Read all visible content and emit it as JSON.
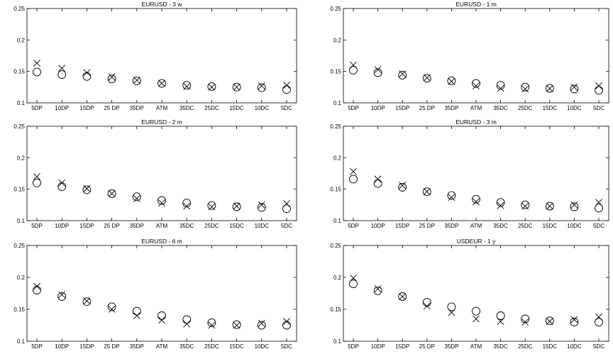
{
  "chart_data": [
    {
      "type": "scatter",
      "title": "EURUSD - 3 w",
      "categories": [
        "5DP",
        "10DP",
        "15DP",
        "25 DP",
        "35DP",
        "ATM",
        "35DC",
        "25DC",
        "15DC",
        "10DC",
        "5DC"
      ],
      "ylim": [
        0.1,
        0.25
      ],
      "yticks": [
        "0.1",
        "0.15",
        "0.2",
        "0.25"
      ],
      "series": [
        {
          "marker": "circle",
          "values": [
            0.149,
            0.145,
            0.142,
            0.138,
            0.135,
            0.131,
            0.128,
            0.126,
            0.125,
            0.124,
            0.121
          ]
        },
        {
          "marker": "cross",
          "values": [
            0.163,
            0.155,
            0.148,
            0.141,
            0.136,
            0.131,
            0.126,
            0.125,
            0.125,
            0.127,
            0.128
          ]
        }
      ]
    },
    {
      "type": "scatter",
      "title": "EURUSD - 1 m",
      "categories": [
        "5DP",
        "10DP",
        "15DP",
        "25 DP",
        "35DP",
        "ATM",
        "35DC",
        "25DC",
        "15DC",
        "10DC",
        "5DC"
      ],
      "ylim": [
        0.1,
        0.25
      ],
      "yticks": [
        "0.1",
        "0.15",
        "0.2",
        "0.25"
      ],
      "series": [
        {
          "marker": "circle",
          "values": [
            0.152,
            0.148,
            0.144,
            0.139,
            0.135,
            0.131,
            0.128,
            0.125,
            0.123,
            0.122,
            0.12
          ]
        },
        {
          "marker": "cross",
          "values": [
            0.16,
            0.153,
            0.146,
            0.14,
            0.134,
            0.127,
            0.123,
            0.122,
            0.123,
            0.125,
            0.127
          ]
        }
      ]
    },
    {
      "type": "scatter",
      "title": "EURUSD - 2 m",
      "categories": [
        "5DP",
        "10DP",
        "15DP",
        "25 DP",
        "35DP",
        "ATM",
        "35DC",
        "25DC",
        "15DC",
        "10DC",
        "5DC"
      ],
      "ylim": [
        0.1,
        0.25
      ],
      "yticks": [
        "0.1",
        "0.15",
        "0.2",
        "0.25"
      ],
      "series": [
        {
          "marker": "circle",
          "values": [
            0.16,
            0.154,
            0.149,
            0.143,
            0.138,
            0.132,
            0.128,
            0.124,
            0.122,
            0.121,
            0.119
          ]
        },
        {
          "marker": "cross",
          "values": [
            0.17,
            0.16,
            0.151,
            0.143,
            0.135,
            0.128,
            0.123,
            0.122,
            0.123,
            0.125,
            0.127
          ]
        }
      ]
    },
    {
      "type": "scatter",
      "title": "EURUSD - 3 m",
      "categories": [
        "5DP",
        "10DP",
        "15DP",
        "25 DP",
        "35DP",
        "ATM",
        "35DC",
        "25DC",
        "15DC",
        "10DC",
        "5DC"
      ],
      "ylim": [
        0.1,
        0.25
      ],
      "yticks": [
        "0.1",
        "0.15",
        "0.2",
        "0.25"
      ],
      "series": [
        {
          "marker": "circle",
          "values": [
            0.166,
            0.159,
            0.153,
            0.146,
            0.14,
            0.134,
            0.129,
            0.125,
            0.123,
            0.122,
            0.12
          ]
        },
        {
          "marker": "cross",
          "values": [
            0.178,
            0.166,
            0.156,
            0.146,
            0.137,
            0.13,
            0.124,
            0.123,
            0.123,
            0.125,
            0.129
          ]
        }
      ]
    },
    {
      "type": "scatter",
      "title": "EURUSD - 6 m",
      "categories": [
        "5DP",
        "10DP",
        "15DP",
        "25 DP",
        "35DP",
        "ATM",
        "35DC",
        "25DC",
        "15DC",
        "10DC",
        "5DC"
      ],
      "ylim": [
        0.1,
        0.25
      ],
      "yticks": [
        "0.1",
        "0.15",
        "0.2",
        "0.25"
      ],
      "series": [
        {
          "marker": "circle",
          "values": [
            0.18,
            0.17,
            0.162,
            0.154,
            0.147,
            0.14,
            0.134,
            0.129,
            0.126,
            0.125,
            0.125
          ]
        },
        {
          "marker": "cross",
          "values": [
            0.186,
            0.173,
            0.163,
            0.15,
            0.14,
            0.133,
            0.127,
            0.125,
            0.125,
            0.128,
            0.131
          ]
        }
      ]
    },
    {
      "type": "scatter",
      "title": "USDEUR - 1 y",
      "categories": [
        "5DP",
        "10DP",
        "15DP",
        "25 DP",
        "35DP",
        "ATM",
        "35DC",
        "25DC",
        "15DC",
        "10DC",
        "5DC"
      ],
      "ylim": [
        0.1,
        0.25
      ],
      "yticks": [
        "0.1",
        "0.15",
        "0.2",
        "0.25"
      ],
      "series": [
        {
          "marker": "circle",
          "values": [
            0.19,
            0.179,
            0.17,
            0.161,
            0.154,
            0.147,
            0.14,
            0.135,
            0.132,
            0.13,
            0.13
          ]
        },
        {
          "marker": "cross",
          "values": [
            0.199,
            0.182,
            0.17,
            0.155,
            0.145,
            0.135,
            0.131,
            0.13,
            0.131,
            0.134,
            0.138
          ]
        }
      ]
    }
  ]
}
